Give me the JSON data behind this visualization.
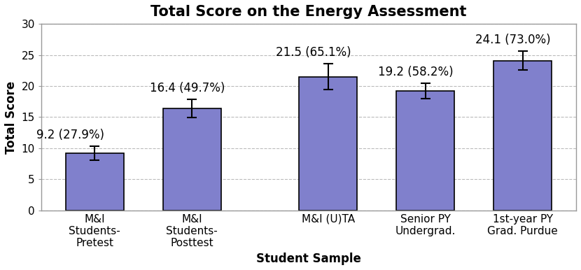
{
  "title": "Total Score on the Energy Assessment",
  "xlabel": "Student Sample",
  "ylabel": "Total Score",
  "categories": [
    "M&I\nStudents-\nPretest",
    "M&I\nStudents-\nPosttest",
    "M&I (U)TA",
    "Senior PY\nUndergrad.",
    "1st-year PY\nGrad. Purdue"
  ],
  "values": [
    9.2,
    16.4,
    21.5,
    19.2,
    24.1
  ],
  "errors": [
    1.1,
    1.5,
    2.1,
    1.2,
    1.5
  ],
  "labels": [
    "9.2 (27.9%)",
    "16.4 (49.7%)",
    "21.5 (65.1%)",
    "19.2 (58.2%)",
    "24.1 (73.0%)"
  ],
  "bar_color": "#8080CC",
  "bar_edge_color": "#000000",
  "ylim": [
    0,
    30
  ],
  "yticks": [
    0,
    5,
    10,
    15,
    20,
    25,
    30
  ],
  "bar_width": 0.6,
  "x_positions": [
    0,
    1,
    2.4,
    3.4,
    4.4
  ],
  "grid_color": "#BBBBBB",
  "background_color": "#FFFFFF",
  "title_fontsize": 15,
  "label_fontsize": 12,
  "axis_label_fontsize": 12,
  "tick_fontsize": 11
}
